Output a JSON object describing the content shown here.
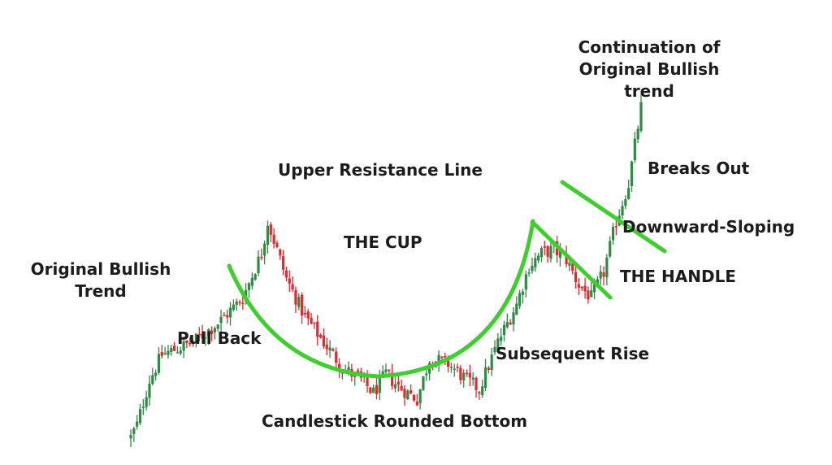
{
  "colors": {
    "up": "#2e8b45",
    "down": "#e8262c",
    "pattern_line": "#3ecf2e",
    "text": "#1c1c1c",
    "background": "#ffffff"
  },
  "annotations": {
    "original_trend_line1": "Original Bullish",
    "original_trend_line2": "Trend",
    "pull_back": "Pull Back",
    "upper_resistance": "Upper Resistance Line",
    "the_cup": "THE CUP",
    "rounded_bottom": "Candlestick Rounded Bottom",
    "subsequent_rise": "Subsequent Rise",
    "downward_sloping": "Downward-Sloping",
    "the_handle": "THE HANDLE",
    "breaks_out": "Breaks Out",
    "continuation_line1": "Continuation of",
    "continuation_line2": "Original Bullish",
    "continuation_line3": "trend"
  },
  "chart_data": {
    "type": "candlestick",
    "title": "",
    "xlabel": "",
    "ylabel": "",
    "axes": "none",
    "grid": false,
    "pattern": "cup and handle",
    "price_anchors": [
      {
        "bar": 0,
        "price": 0
      },
      {
        "bar": 2,
        "price": 10
      },
      {
        "bar": 6,
        "price": 45
      },
      {
        "bar": 10,
        "price": 65
      },
      {
        "bar": 20,
        "price": 75
      },
      {
        "bar": 28,
        "price": 90
      },
      {
        "bar": 36,
        "price": 110
      },
      {
        "bar": 42,
        "price": 145
      },
      {
        "bar": 44,
        "price": 170
      },
      {
        "bar": 46,
        "price": 155
      },
      {
        "bar": 50,
        "price": 125
      },
      {
        "bar": 56,
        "price": 95
      },
      {
        "bar": 62,
        "price": 75
      },
      {
        "bar": 68,
        "price": 55
      },
      {
        "bar": 74,
        "price": 45
      },
      {
        "bar": 78,
        "price": 35
      },
      {
        "bar": 82,
        "price": 50
      },
      {
        "bar": 86,
        "price": 40
      },
      {
        "bar": 92,
        "price": 30
      },
      {
        "bar": 96,
        "price": 62
      },
      {
        "bar": 102,
        "price": 58
      },
      {
        "bar": 108,
        "price": 45
      },
      {
        "bar": 112,
        "price": 38
      },
      {
        "bar": 118,
        "price": 75
      },
      {
        "bar": 124,
        "price": 105
      },
      {
        "bar": 128,
        "price": 135
      },
      {
        "bar": 132,
        "price": 145
      },
      {
        "bar": 136,
        "price": 148
      },
      {
        "bar": 140,
        "price": 140
      },
      {
        "bar": 144,
        "price": 120
      },
      {
        "bar": 148,
        "price": 110
      },
      {
        "bar": 152,
        "price": 130
      },
      {
        "bar": 156,
        "price": 170
      },
      {
        "bar": 160,
        "price": 200
      },
      {
        "bar": 164,
        "price": 260
      }
    ]
  }
}
